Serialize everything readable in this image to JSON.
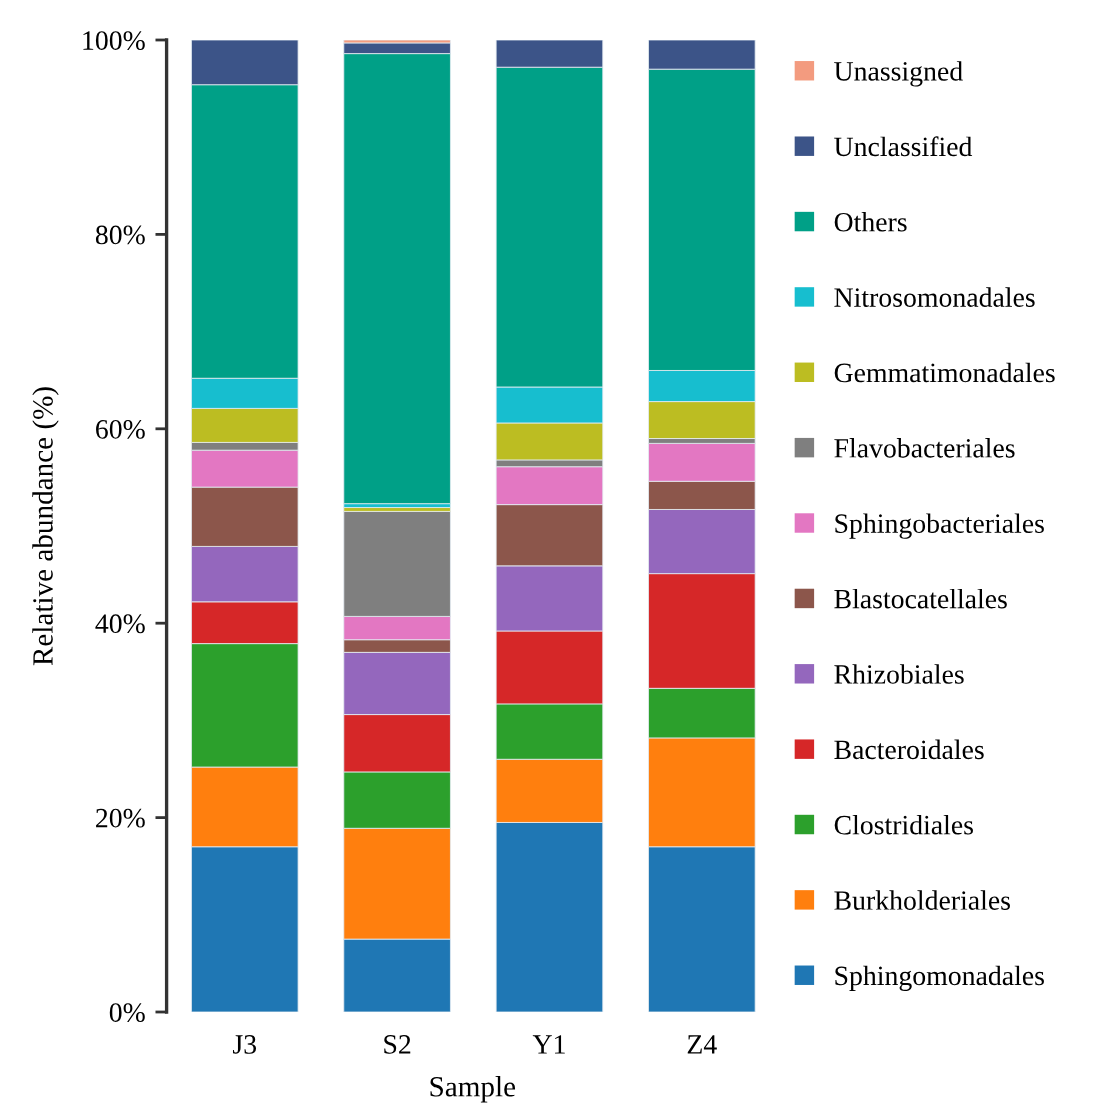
{
  "chart_data": {
    "type": "bar",
    "stacked": true,
    "xlabel": "Sample",
    "ylabel": "Relative abundance (%)",
    "categories": [
      "J3",
      "S2",
      "Y1",
      "Z4"
    ],
    "series": [
      {
        "name": "Sphingomonadales",
        "color": "#1f77b4",
        "values": [
          17.0,
          7.5,
          19.5,
          17.0
        ]
      },
      {
        "name": "Burkholderiales",
        "color": "#ff7f0e",
        "values": [
          8.2,
          11.4,
          6.5,
          11.2
        ]
      },
      {
        "name": "Clostridiales",
        "color": "#2ca02c",
        "values": [
          12.7,
          5.8,
          5.7,
          5.1
        ]
      },
      {
        "name": "Bacteroidales",
        "color": "#d62728",
        "values": [
          4.3,
          5.9,
          7.5,
          11.8
        ]
      },
      {
        "name": "Rhizobiales",
        "color": "#9467bd",
        "values": [
          5.7,
          6.4,
          6.7,
          6.6
        ]
      },
      {
        "name": "Blastocatellales",
        "color": "#8c564b",
        "values": [
          6.1,
          1.3,
          6.3,
          2.9
        ]
      },
      {
        "name": "Sphingobacteriales",
        "color": "#e377c2",
        "values": [
          3.8,
          2.4,
          3.9,
          3.9
        ]
      },
      {
        "name": "Flavobacteriales",
        "color": "#7f7f7f",
        "values": [
          0.8,
          10.8,
          0.7,
          0.5
        ]
      },
      {
        "name": "Gemmatimonadales",
        "color": "#bcbd22",
        "values": [
          3.5,
          0.4,
          3.8,
          3.8
        ]
      },
      {
        "name": "Nitrosomonadales",
        "color": "#17becf",
        "values": [
          3.1,
          0.4,
          3.7,
          3.2
        ]
      },
      {
        "name": "Others",
        "color": "#00a087",
        "values": [
          30.2,
          46.3,
          32.9,
          31.0
        ]
      },
      {
        "name": "Unclassified",
        "color": "#3c5488",
        "values": [
          4.6,
          1.1,
          2.8,
          3.0
        ]
      },
      {
        "name": "Unassigned",
        "color": "#f39b7f",
        "values": [
          null,
          0.3,
          null,
          null
        ]
      }
    ],
    "ylim": [
      0,
      100
    ],
    "yticks": [
      {
        "value": 0,
        "label": "0%"
      },
      {
        "value": 20,
        "label": "20%"
      },
      {
        "value": 40,
        "label": "40%"
      },
      {
        "value": 60,
        "label": "60%"
      },
      {
        "value": 80,
        "label": "80%"
      },
      {
        "value": 100,
        "label": "100%"
      }
    ],
    "legend": "right"
  }
}
